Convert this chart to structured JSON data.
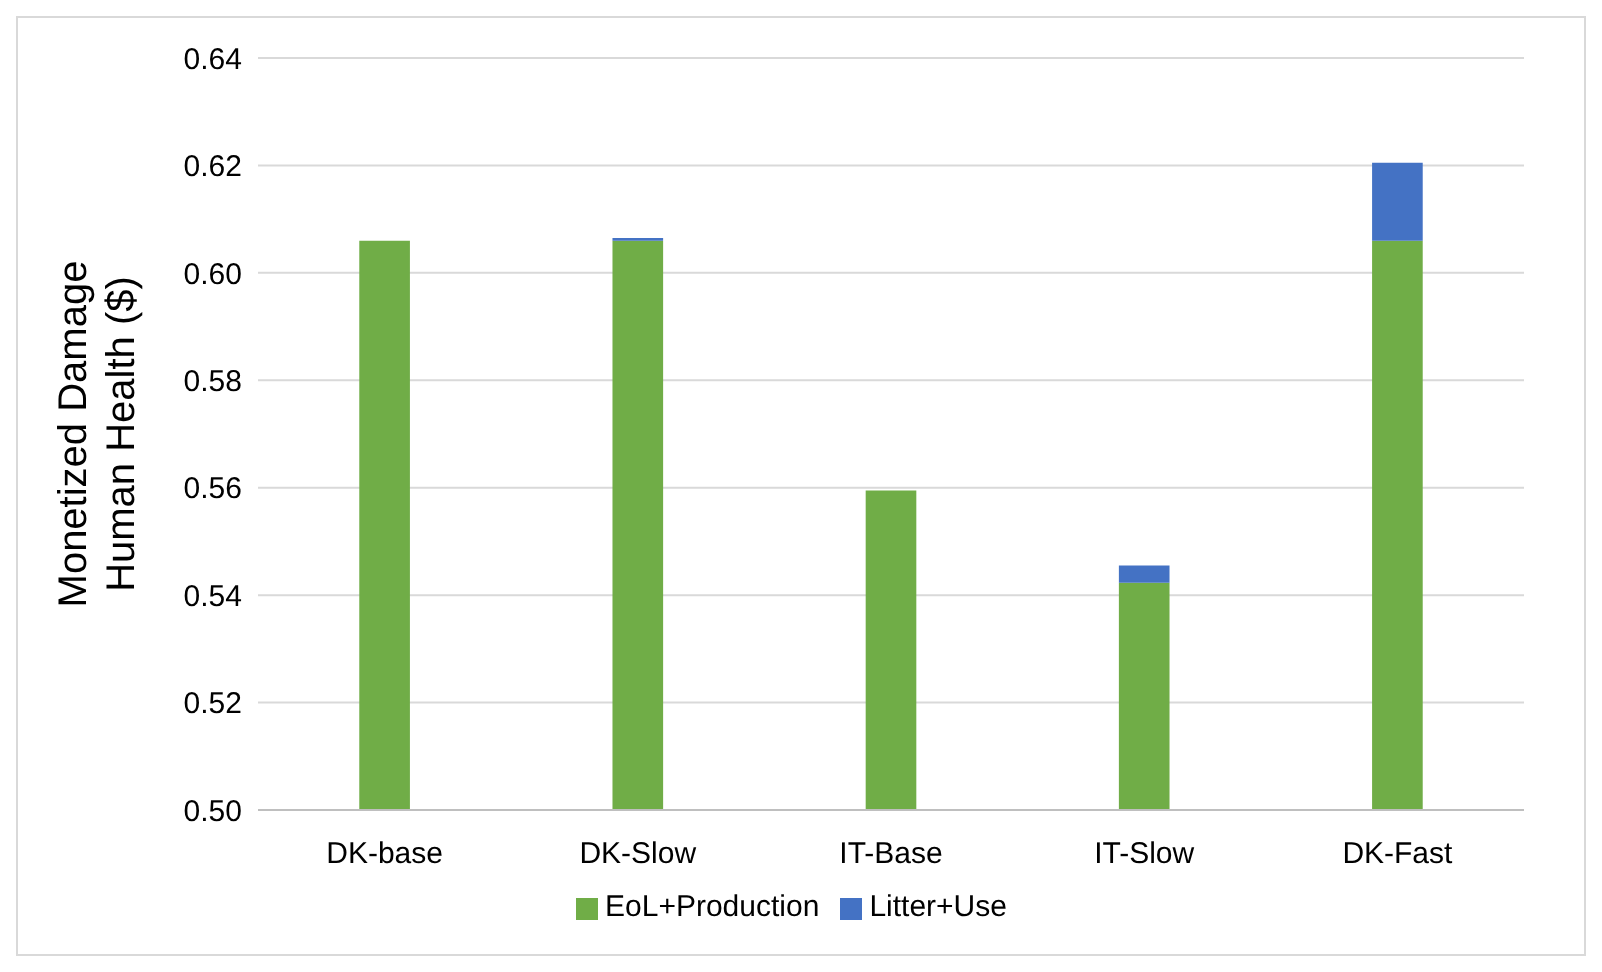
{
  "chart_data": {
    "type": "bar",
    "ylabel": "Monetized Damage\nHuman Health ($)",
    "categories": [
      "DK-base",
      "DK-Slow",
      "IT-Base",
      "IT-Slow",
      "DK-Fast"
    ],
    "series": [
      {
        "name": "EoL+Production",
        "color": "#70ad47",
        "values": [
          0.606,
          0.606,
          0.5595,
          0.5423,
          0.606
        ]
      },
      {
        "name": "Litter+Use",
        "color": "#4472c4",
        "base": [
          null,
          0.606,
          null,
          0.5423,
          0.606
        ],
        "values": [
          null,
          0.0005,
          null,
          0.0032,
          0.0145
        ]
      }
    ],
    "ylim": [
      0.5,
      0.64
    ],
    "yticks": [
      {
        "value": 0.5,
        "label": "0.50"
      },
      {
        "value": 0.52,
        "label": "0.52"
      },
      {
        "value": 0.54,
        "label": "0.54"
      },
      {
        "value": 0.56,
        "label": "0.56"
      },
      {
        "value": 0.58,
        "label": "0.58"
      },
      {
        "value": 0.6,
        "label": "0.60"
      },
      {
        "value": 0.62,
        "label": "0.62"
      },
      {
        "value": 0.64,
        "label": "0.64"
      }
    ],
    "grid": "y",
    "legend": "bottom"
  }
}
